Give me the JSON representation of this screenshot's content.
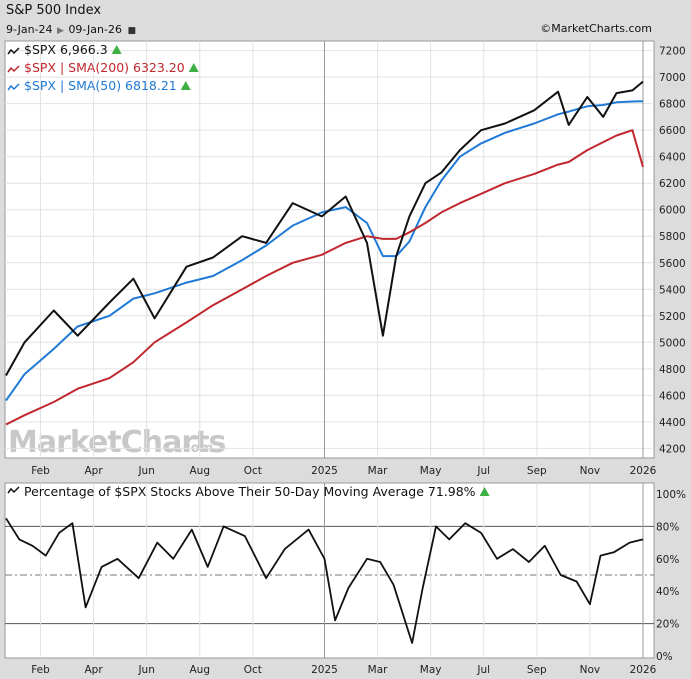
{
  "header": {
    "title": "S&P 500 Index",
    "start_date": "9-Jan-24",
    "end_date": "09-Jan-26",
    "credit": "©MarketCharts.com"
  },
  "watermark": {
    "main": "MarketCharts",
    "suffix": ".com"
  },
  "colors": {
    "price_line": "#111111",
    "sma200": "#c0282d",
    "sma50": "#1f7ad6",
    "up_triangle": "#3cb043",
    "panel_bg": "#ffffff",
    "outer_bg": "#dcdcdc",
    "grid": "#e2e2e2"
  },
  "chart_data": [
    {
      "type": "line",
      "title": "S&P 500 Index",
      "legend": [
        {
          "label": "$SPX 6,966.3",
          "color": "#111111",
          "icon": "line-glyph-icon",
          "badge": "up-triangle-icon"
        },
        {
          "label": "$SPX | SMA(200) 6323.20",
          "color": "#c0282d",
          "icon": "line-glyph-icon",
          "badge": "up-triangle-icon"
        },
        {
          "label": "$SPX | SMA(50) 6818.21",
          "color": "#1f7ad6",
          "icon": "line-glyph-icon",
          "badge": "up-triangle-icon"
        }
      ],
      "x_tick_labels": [
        "Feb",
        "Apr",
        "Jun",
        "Aug",
        "Oct",
        "2025",
        "Mar",
        "May",
        "Jul",
        "Sep",
        "Nov",
        "2026"
      ],
      "y_tick_labels": [
        "4200",
        "4400",
        "4600",
        "4800",
        "5000",
        "5200",
        "5400",
        "5600",
        "5800",
        "6000",
        "6200",
        "6400",
        "6600",
        "6800",
        "7000",
        "7200"
      ],
      "ylim": [
        4150,
        7250
      ],
      "legend_placement": "top-left",
      "grid": true,
      "x_months": [
        0,
        0.7,
        1.8,
        2.7,
        3.9,
        4.8,
        5.6,
        6.8,
        7.8,
        8.9,
        9.8,
        10.8,
        11.9,
        12.8,
        13.6,
        14.2,
        14.7,
        15.2,
        15.8,
        16.4,
        17.1,
        17.9,
        18.8,
        19.9,
        20.8,
        21.2,
        21.9,
        22.5,
        23.0,
        23.6,
        24.0
      ],
      "series": [
        {
          "name": "$SPX",
          "values": [
            4750,
            5000,
            5240,
            5050,
            5300,
            5480,
            5180,
            5570,
            5640,
            5800,
            5750,
            6050,
            5950,
            6100,
            5750,
            5050,
            5650,
            5950,
            6200,
            6280,
            6450,
            6600,
            6650,
            6750,
            6890,
            6640,
            6850,
            6700,
            6880,
            6900,
            6966.3
          ]
        },
        {
          "name": "$SPX | SMA(200)",
          "values": [
            4380,
            4450,
            4550,
            4650,
            4730,
            4850,
            5000,
            5150,
            5280,
            5400,
            5500,
            5600,
            5660,
            5750,
            5800,
            5780,
            5780,
            5830,
            5900,
            5980,
            6050,
            6120,
            6200,
            6270,
            6340,
            6360,
            6450,
            6510,
            6560,
            6600,
            6323.2
          ]
        },
        {
          "name": "$SPX | SMA(50)",
          "values": [
            4560,
            4760,
            4950,
            5120,
            5200,
            5330,
            5370,
            5450,
            5500,
            5620,
            5730,
            5880,
            5980,
            6020,
            5900,
            5650,
            5650,
            5760,
            6020,
            6220,
            6400,
            6500,
            6580,
            6650,
            6720,
            6740,
            6780,
            6790,
            6810,
            6816,
            6818.21
          ]
        }
      ]
    },
    {
      "type": "line",
      "title": "Percentage of $SPX Stocks Above Their 50-Day Moving Average 71.98%",
      "x_tick_labels": [
        "Feb",
        "Apr",
        "Jun",
        "Aug",
        "Oct",
        "2025",
        "Mar",
        "May",
        "Jul",
        "Sep",
        "Nov",
        "2026"
      ],
      "y_tick_labels": [
        "0%",
        "20%",
        "40%",
        "60%",
        "80%",
        "100%"
      ],
      "ylim": [
        0,
        100
      ],
      "reference_lines": [
        20,
        50,
        80
      ],
      "legend_placement": "top-left",
      "x_months": [
        0,
        0.5,
        1.0,
        1.5,
        2.0,
        2.5,
        3.0,
        3.6,
        4.2,
        5.0,
        5.7,
        6.3,
        7.0,
        7.6,
        8.2,
        9.0,
        9.8,
        10.5,
        11.4,
        12.0,
        12.4,
        12.9,
        13.6,
        14.1,
        14.6,
        15.3,
        15.7,
        16.2,
        16.7,
        17.3,
        17.9,
        18.5,
        19.1,
        19.7,
        20.3,
        20.9,
        21.5,
        22.0,
        22.4,
        22.9,
        23.5,
        24.0
      ],
      "series": [
        {
          "name": "$SPX stocks above 50-day MA",
          "values": [
            85,
            72,
            68,
            62,
            76,
            82,
            30,
            55,
            60,
            48,
            70,
            60,
            78,
            55,
            80,
            74,
            48,
            66,
            78,
            60,
            22,
            42,
            60,
            58,
            44,
            8,
            42,
            80,
            72,
            82,
            76,
            60,
            66,
            58,
            68,
            50,
            46,
            32,
            62,
            64,
            70,
            71.98
          ]
        }
      ]
    }
  ]
}
